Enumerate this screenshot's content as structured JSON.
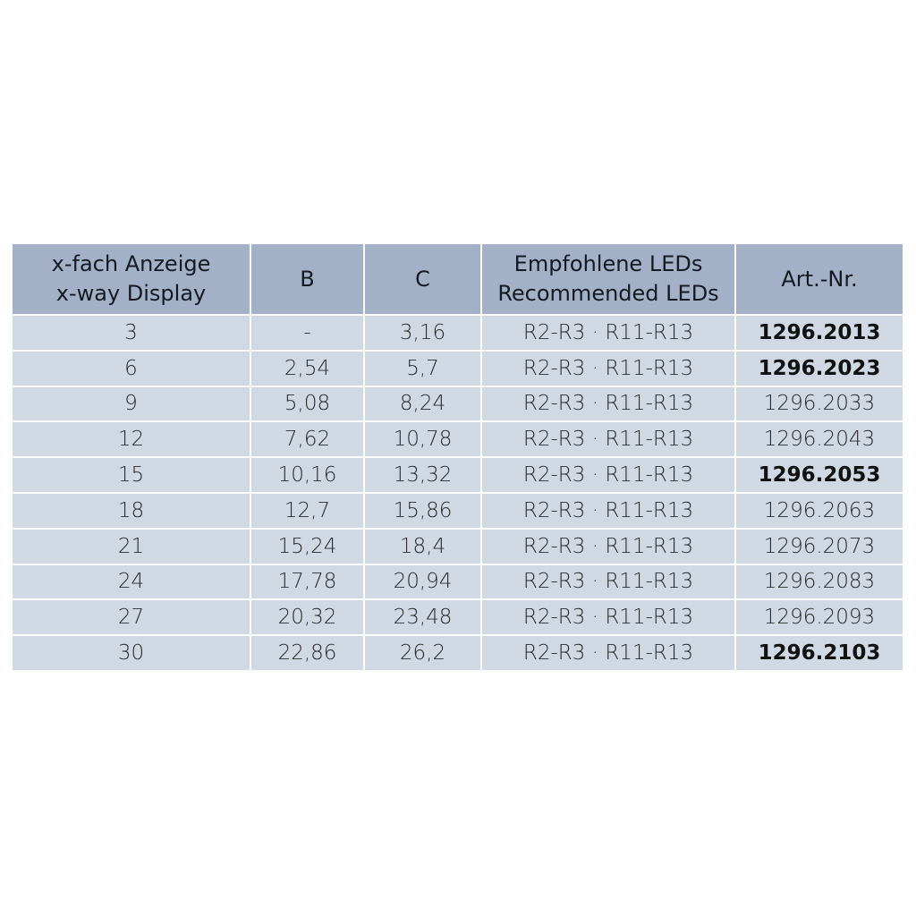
{
  "table": {
    "headers": [
      [
        "x-fach Anzeige",
        "x-way Display"
      ],
      [
        "B"
      ],
      [
        "C"
      ],
      [
        "Empfohlene LEDs",
        "Recommended LEDs"
      ],
      [
        "Art.-Nr."
      ]
    ],
    "rows": [
      {
        "x": "3",
        "b": "-",
        "c": "3,16",
        "leds": "R2-R3 · R11-R13",
        "art": "1296.2013",
        "bold": true
      },
      {
        "x": "6",
        "b": "2,54",
        "c": "5,7",
        "leds": "R2-R3 · R11-R13",
        "art": "1296.2023",
        "bold": true
      },
      {
        "x": "9",
        "b": "5,08",
        "c": "8,24",
        "leds": "R2-R3 · R11-R13",
        "art": "1296.2033",
        "bold": false
      },
      {
        "x": "12",
        "b": "7,62",
        "c": "10,78",
        "leds": "R2-R3 · R11-R13",
        "art": "1296.2043",
        "bold": false
      },
      {
        "x": "15",
        "b": "10,16",
        "c": "13,32",
        "leds": "R2-R3 · R11-R13",
        "art": "1296.2053",
        "bold": true
      },
      {
        "x": "18",
        "b": "12,7",
        "c": "15,86",
        "leds": "R2-R3 · R11-R13",
        "art": "1296.2063",
        "bold": false
      },
      {
        "x": "21",
        "b": "15,24",
        "c": "18,4",
        "leds": "R2-R3 · R11-R13",
        "art": "1296.2073",
        "bold": false
      },
      {
        "x": "24",
        "b": "17,78",
        "c": "20,94",
        "leds": "R2-R3 · R11-R13",
        "art": "1296.2083",
        "bold": false
      },
      {
        "x": "27",
        "b": "20,32",
        "c": "23,48",
        "leds": "R2-R3 · R11-R13",
        "art": "1296.2093",
        "bold": false
      },
      {
        "x": "30",
        "b": "22,86",
        "c": "26,2",
        "leds": "R2-R3 · R11-R13",
        "art": "1296.2103",
        "bold": true
      }
    ],
    "colors": {
      "header": "#a2b0c8",
      "body": "#d0d8e4"
    }
  }
}
